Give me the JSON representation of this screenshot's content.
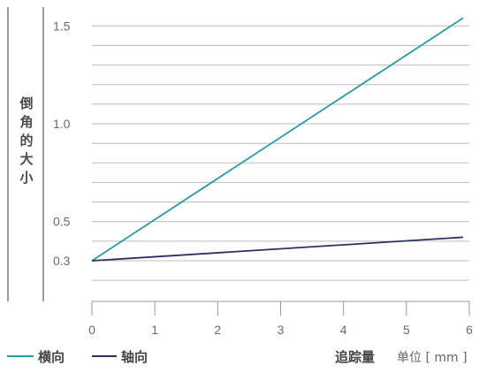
{
  "chart_data": {
    "type": "line",
    "ylabel": "倒角的大小",
    "xlabel": "追踪量",
    "xlabel_unit": "单位 [ mm ]",
    "x_ticks": [
      "0",
      "1",
      "2",
      "3",
      "4",
      "5",
      "6"
    ],
    "y_ticks": [
      "0.3",
      "0.5",
      "1.0",
      "1.5"
    ],
    "xlim": [
      0,
      6
    ],
    "ylim": [
      0.3,
      1.55
    ],
    "grid": true,
    "legend_position": "bottom-left",
    "series": [
      {
        "name": "横向",
        "color": "#2a9aa3",
        "x": [
          0,
          5.9
        ],
        "y": [
          0.3,
          1.54
        ]
      },
      {
        "name": "轴向",
        "color": "#2b3163",
        "x": [
          0,
          5.9
        ],
        "y": [
          0.3,
          0.42
        ]
      }
    ]
  }
}
